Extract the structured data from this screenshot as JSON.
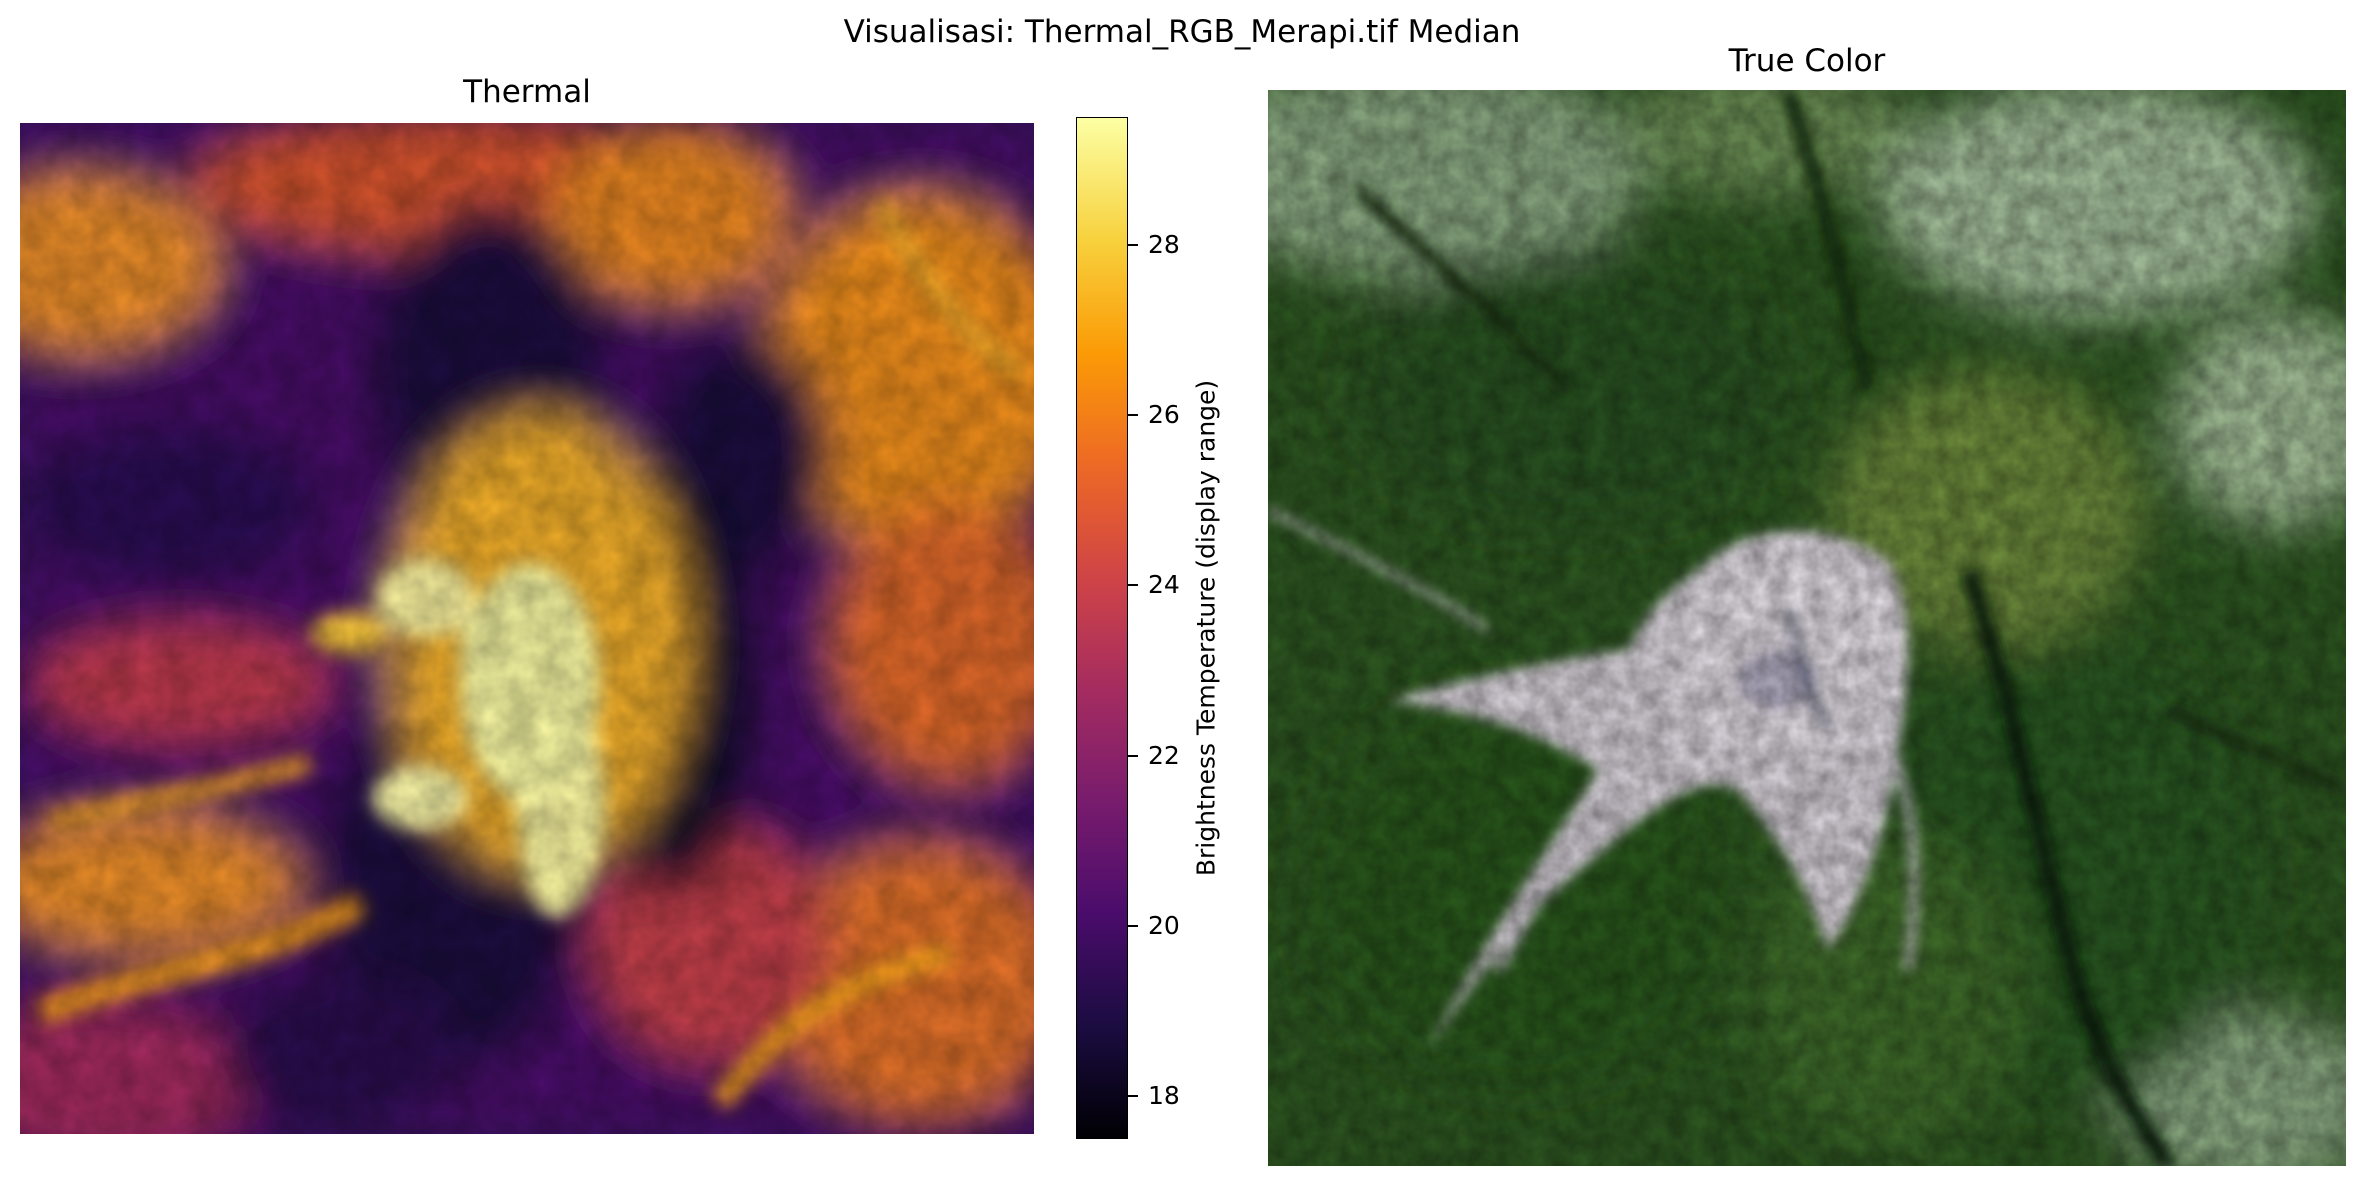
{
  "figure": {
    "suptitle": "Visualisasi: Thermal_RGB_Merapi.tif Median"
  },
  "thermal_panel": {
    "title": "Thermal",
    "colormap": "inferno",
    "colormap_stops": [
      "#000004",
      "#1b0c41",
      "#4a0c6b",
      "#781c6d",
      "#a52c60",
      "#cf4446",
      "#ed6925",
      "#fb9b06",
      "#f7d13d",
      "#fcffa4"
    ],
    "colorbar": {
      "label": "Brightness Temperature (display range)",
      "range": [
        17.5,
        29.5
      ],
      "ticks": [
        18,
        20,
        22,
        24,
        26,
        28
      ],
      "tick_labels": [
        "18",
        "20",
        "22",
        "24",
        "26",
        "28"
      ]
    }
  },
  "truecolor_panel": {
    "title": "True Color",
    "colors": {
      "forest_dark": "#1f3f17",
      "forest": "#3f6e2c",
      "forest_light": "#7aa05a",
      "ash": "#e6dfe6",
      "ash_shadow": "#b9b2c0",
      "farmland": "#a9c6a2"
    }
  }
}
